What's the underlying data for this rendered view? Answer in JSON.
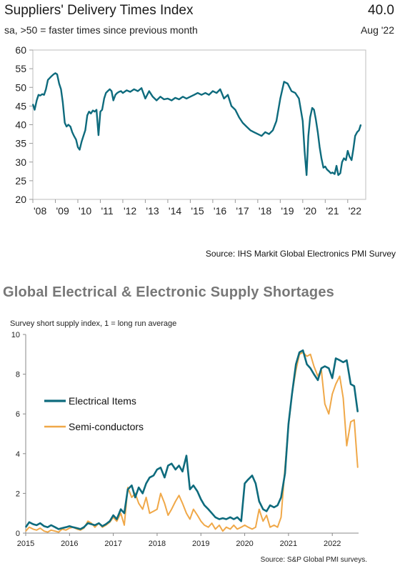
{
  "chart_data": [
    {
      "type": "line",
      "title": "Suppliers' Delivery Times Index",
      "subtitle": "sa, >50 = faster times since previous month",
      "latest_value": "40.0",
      "latest_date": "Aug '22",
      "ylim": [
        20,
        60
      ],
      "y_ticks": [
        "20",
        "25",
        "30",
        "35",
        "40",
        "45",
        "50",
        "55",
        "60"
      ],
      "x_ticks": [
        "'08",
        "'09",
        "'10",
        "'11",
        "'12",
        "'13",
        "'14",
        "'15",
        "'16",
        "'17",
        "'18",
        "'19",
        "'20",
        "'21",
        "'22"
      ],
      "xlim": [
        2008.0,
        2022.8
      ],
      "source": "Source: IHS Markit Global Electronics PMI Survey",
      "series": [
        {
          "color": "#0e6b7d",
          "x": [
            2008.0,
            2008.08,
            2008.17,
            2008.25,
            2008.33,
            2008.42,
            2008.5,
            2008.58,
            2008.67,
            2008.75,
            2008.83,
            2008.92,
            2009.0,
            2009.08,
            2009.17,
            2009.25,
            2009.33,
            2009.42,
            2009.5,
            2009.58,
            2009.67,
            2009.75,
            2009.83,
            2009.92,
            2010.0,
            2010.08,
            2010.17,
            2010.25,
            2010.33,
            2010.42,
            2010.5,
            2010.58,
            2010.67,
            2010.75,
            2010.83,
            2010.92,
            2011.0,
            2011.08,
            2011.17,
            2011.25,
            2011.33,
            2011.42,
            2011.5,
            2011.58,
            2011.67,
            2011.75,
            2011.83,
            2011.92,
            2012.0,
            2012.17,
            2012.33,
            2012.5,
            2012.67,
            2012.83,
            2013.0,
            2013.17,
            2013.33,
            2013.5,
            2013.67,
            2013.83,
            2014.0,
            2014.17,
            2014.33,
            2014.5,
            2014.67,
            2014.83,
            2015.0,
            2015.17,
            2015.33,
            2015.5,
            2015.67,
            2015.83,
            2016.0,
            2016.17,
            2016.33,
            2016.5,
            2016.67,
            2016.83,
            2017.0,
            2017.17,
            2017.33,
            2017.5,
            2017.67,
            2017.83,
            2018.0,
            2018.17,
            2018.33,
            2018.5,
            2018.67,
            2018.83,
            2019.0,
            2019.17,
            2019.33,
            2019.5,
            2019.67,
            2019.83,
            2020.0,
            2020.08,
            2020.17,
            2020.25,
            2020.33,
            2020.42,
            2020.5,
            2020.58,
            2020.67,
            2020.75,
            2020.83,
            2020.92,
            2021.0,
            2021.08,
            2021.17,
            2021.25,
            2021.33,
            2021.42,
            2021.5,
            2021.58,
            2021.67,
            2021.75,
            2021.83,
            2021.92,
            2022.0,
            2022.08,
            2022.17,
            2022.25,
            2022.33,
            2022.42,
            2022.5,
            2022.58
          ],
          "values": [
            45.5,
            44.0,
            46.5,
            48.0,
            47.8,
            48.2,
            48.0,
            49.5,
            52.0,
            52.5,
            53.0,
            53.5,
            53.8,
            53.5,
            51.0,
            49.5,
            46.0,
            40.5,
            39.5,
            40.0,
            39.5,
            38.0,
            37.0,
            36.0,
            34.0,
            33.3,
            35.5,
            37.0,
            38.5,
            42.5,
            43.5,
            43.0,
            43.8,
            43.5,
            44.0,
            37.2,
            43.5,
            44.0,
            47.0,
            48.5,
            49.0,
            49.5,
            49.0,
            46.5,
            48.0,
            48.5,
            48.8,
            49.0,
            48.5,
            49.2,
            48.8,
            49.5,
            49.0,
            49.8,
            47.0,
            49.0,
            47.5,
            46.5,
            47.5,
            46.8,
            47.0,
            46.5,
            47.2,
            46.8,
            47.5,
            47.0,
            47.5,
            48.0,
            48.5,
            48.0,
            48.5,
            48.0,
            49.0,
            48.5,
            49.5,
            47.0,
            48.0,
            45.0,
            44.0,
            42.0,
            40.5,
            39.5,
            38.5,
            38.0,
            37.5,
            37.0,
            38.0,
            37.5,
            38.5,
            41.0,
            47.0,
            51.5,
            51.0,
            49.0,
            48.5,
            47.0,
            41.0,
            33.0,
            26.5,
            37.0,
            42.0,
            44.5,
            44.0,
            41.5,
            38.0,
            34.0,
            31.0,
            28.5,
            28.8,
            28.0,
            27.5,
            27.0,
            27.2,
            26.8,
            29.0,
            26.5,
            27.0,
            30.0,
            31.0,
            30.5,
            33.0,
            31.5,
            30.5,
            33.5,
            37.0,
            38.0,
            38.5,
            40.0
          ]
        }
      ]
    },
    {
      "type": "line",
      "title": "Global Electrical & Electronic Supply Shortages",
      "ylabel": "Survey short supply index, 1 = long run average",
      "ylim": [
        0,
        10
      ],
      "y_ticks": [
        "0",
        "2",
        "4",
        "6",
        "8",
        "10"
      ],
      "x_ticks": [
        "2015",
        "2016",
        "2017",
        "2018",
        "2019",
        "2020",
        "2021",
        "2022"
      ],
      "xlim": [
        2015.0,
        2022.6
      ],
      "source": "Source: S&P Global PMI surveys.",
      "legend": {
        "placement": "left"
      },
      "series": [
        {
          "name": "Electrical Items",
          "color": "#0e6b7d",
          "x": [
            2015.0,
            2015.08,
            2015.17,
            2015.25,
            2015.33,
            2015.42,
            2015.5,
            2015.58,
            2015.67,
            2015.75,
            2015.83,
            2015.92,
            2016.0,
            2016.08,
            2016.17,
            2016.25,
            2016.33,
            2016.42,
            2016.5,
            2016.58,
            2016.67,
            2016.75,
            2016.83,
            2016.92,
            2017.0,
            2017.08,
            2017.17,
            2017.25,
            2017.33,
            2017.42,
            2017.5,
            2017.58,
            2017.67,
            2017.75,
            2017.83,
            2017.92,
            2018.0,
            2018.08,
            2018.17,
            2018.25,
            2018.33,
            2018.42,
            2018.5,
            2018.58,
            2018.67,
            2018.75,
            2018.83,
            2018.92,
            2019.0,
            2019.08,
            2019.17,
            2019.25,
            2019.33,
            2019.42,
            2019.5,
            2019.58,
            2019.67,
            2019.75,
            2019.83,
            2019.92,
            2020.0,
            2020.08,
            2020.17,
            2020.25,
            2020.33,
            2020.42,
            2020.5,
            2020.58,
            2020.67,
            2020.75,
            2020.83,
            2020.92,
            2021.0,
            2021.08,
            2021.17,
            2021.25,
            2021.33,
            2021.42,
            2021.5,
            2021.58,
            2021.67,
            2021.75,
            2021.83,
            2021.92,
            2022.0,
            2022.08,
            2022.17,
            2022.25,
            2022.33,
            2022.42,
            2022.5,
            2022.58
          ],
          "values": [
            0.3,
            0.55,
            0.45,
            0.4,
            0.5,
            0.35,
            0.3,
            0.4,
            0.3,
            0.2,
            0.25,
            0.3,
            0.35,
            0.3,
            0.25,
            0.2,
            0.3,
            0.5,
            0.45,
            0.4,
            0.5,
            0.35,
            0.45,
            0.6,
            0.9,
            0.7,
            1.2,
            1.0,
            2.2,
            2.4,
            1.8,
            2.3,
            2.0,
            2.5,
            2.8,
            2.9,
            3.2,
            3.3,
            2.8,
            3.4,
            3.5,
            3.2,
            3.4,
            3.1,
            3.9,
            2.2,
            2.4,
            2.1,
            1.7,
            1.4,
            1.2,
            1.0,
            0.8,
            0.7,
            0.75,
            0.7,
            0.8,
            0.7,
            0.8,
            0.6,
            2.5,
            2.7,
            2.9,
            2.5,
            1.6,
            1.2,
            1.1,
            1.4,
            1.3,
            1.4,
            1.8,
            3.0,
            5.5,
            7.0,
            8.5,
            9.1,
            9.2,
            8.5,
            8.3,
            8.0,
            7.7,
            8.3,
            8.4,
            8.3,
            7.8,
            8.8,
            8.7,
            8.6,
            8.7,
            7.5,
            7.4,
            6.1
          ]
        },
        {
          "name": "Semi-conductors",
          "color": "#f0a848",
          "x": [
            2015.0,
            2015.08,
            2015.17,
            2015.25,
            2015.33,
            2015.42,
            2015.5,
            2015.58,
            2015.67,
            2015.75,
            2015.83,
            2015.92,
            2016.0,
            2016.08,
            2016.17,
            2016.25,
            2016.33,
            2016.42,
            2016.5,
            2016.58,
            2016.67,
            2016.75,
            2016.83,
            2016.92,
            2017.0,
            2017.08,
            2017.17,
            2017.25,
            2017.33,
            2017.42,
            2017.5,
            2017.58,
            2017.67,
            2017.75,
            2017.83,
            2017.92,
            2018.0,
            2018.08,
            2018.17,
            2018.25,
            2018.33,
            2018.42,
            2018.5,
            2018.58,
            2018.67,
            2018.75,
            2018.83,
            2018.92,
            2019.0,
            2019.08,
            2019.17,
            2019.25,
            2019.33,
            2019.42,
            2019.5,
            2019.58,
            2019.67,
            2019.75,
            2019.83,
            2019.92,
            2020.0,
            2020.08,
            2020.17,
            2020.25,
            2020.33,
            2020.42,
            2020.5,
            2020.58,
            2020.67,
            2020.75,
            2020.83,
            2020.92,
            2021.0,
            2021.08,
            2021.17,
            2021.25,
            2021.33,
            2021.42,
            2021.5,
            2021.58,
            2021.67,
            2021.75,
            2021.83,
            2021.92,
            2022.0,
            2022.08,
            2022.17,
            2022.25,
            2022.33,
            2022.42,
            2022.5,
            2022.58
          ],
          "values": [
            0.1,
            0.3,
            0.2,
            0.15,
            0.25,
            0.1,
            0.05,
            0.15,
            0.1,
            0.05,
            0.2,
            0.15,
            0.25,
            0.3,
            0.2,
            0.15,
            0.25,
            0.6,
            0.5,
            0.3,
            0.5,
            0.3,
            0.4,
            0.55,
            0.8,
            0.6,
            1.0,
            0.4,
            2.3,
            1.8,
            2.0,
            1.5,
            1.2,
            1.8,
            1.0,
            1.1,
            1.2,
            2.0,
            1.5,
            0.9,
            1.2,
            1.6,
            1.9,
            1.5,
            1.0,
            0.7,
            1.2,
            0.9,
            0.6,
            0.4,
            0.3,
            0.5,
            0.2,
            0.4,
            0.1,
            0.3,
            0.2,
            0.4,
            0.2,
            0.3,
            0.4,
            0.3,
            0.2,
            0.3,
            1.2,
            0.6,
            0.9,
            0.3,
            0.4,
            0.3,
            0.8,
            3.3,
            5.4,
            7.0,
            8.2,
            9.0,
            9.1,
            8.9,
            9.0,
            8.4,
            7.9,
            8.2,
            6.5,
            6.0,
            7.0,
            7.5,
            7.9,
            6.8,
            4.4,
            5.6,
            5.7,
            3.3
          ]
        }
      ]
    }
  ]
}
